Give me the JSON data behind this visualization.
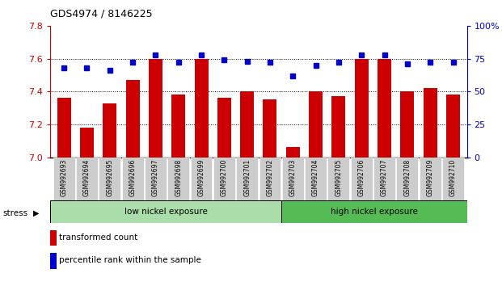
{
  "title": "GDS4974 / 8146225",
  "samples": [
    "GSM992693",
    "GSM992694",
    "GSM992695",
    "GSM992696",
    "GSM992697",
    "GSM992698",
    "GSM992699",
    "GSM992700",
    "GSM992701",
    "GSM992702",
    "GSM992703",
    "GSM992704",
    "GSM992705",
    "GSM992706",
    "GSM992707",
    "GSM992708",
    "GSM992709",
    "GSM992710"
  ],
  "bar_values": [
    7.36,
    7.18,
    7.33,
    7.47,
    7.6,
    7.38,
    7.6,
    7.36,
    7.4,
    7.35,
    7.06,
    7.4,
    7.37,
    7.6,
    7.6,
    7.4,
    7.42,
    7.38
  ],
  "percentile_values": [
    68,
    68,
    66,
    72,
    78,
    72,
    78,
    74,
    73,
    72,
    62,
    70,
    72,
    78,
    78,
    71,
    72,
    72
  ],
  "ylim_left": [
    7.0,
    7.8
  ],
  "ylim_right": [
    0,
    100
  ],
  "yticks_left": [
    7.0,
    7.2,
    7.4,
    7.6,
    7.8
  ],
  "yticks_right": [
    0,
    25,
    50,
    75,
    100
  ],
  "bar_color": "#cc0000",
  "dot_color": "#0000cc",
  "bar_width": 0.6,
  "low_nickel_count": 10,
  "high_nickel_count": 8,
  "low_label": "low nickel exposure",
  "high_label": "high nickel exposure",
  "stress_label": "stress",
  "legend_bar": "transformed count",
  "legend_dot": "percentile rank within the sample",
  "low_bg": "#aaddaa",
  "high_bg": "#55bb55",
  "tick_bg": "#cccccc",
  "left_tick_color": "#cc0000",
  "right_tick_color": "#0000cc"
}
